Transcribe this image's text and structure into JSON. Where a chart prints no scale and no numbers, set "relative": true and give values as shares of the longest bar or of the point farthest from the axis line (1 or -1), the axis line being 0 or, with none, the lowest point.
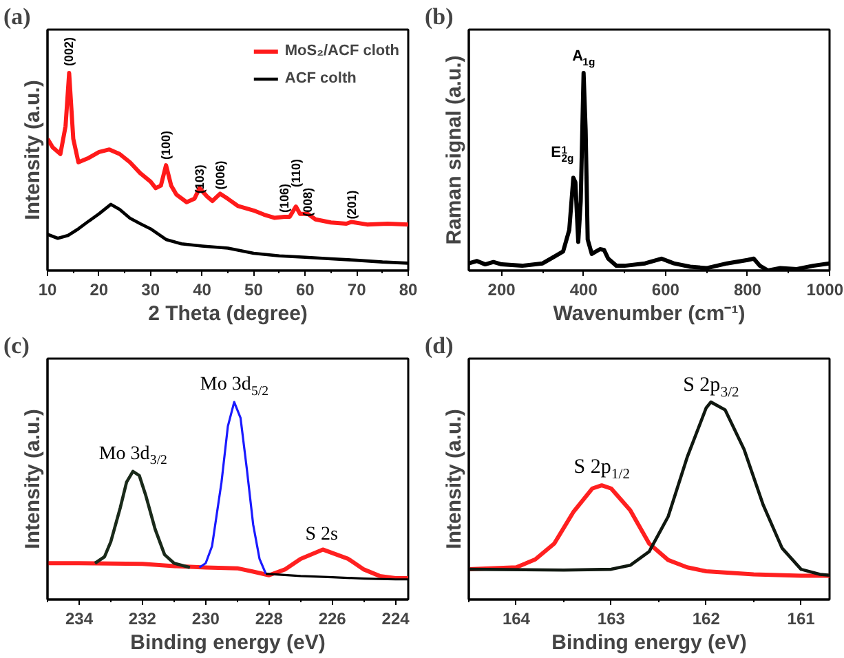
{
  "chart_data": [
    {
      "type": "line",
      "title": "(a)",
      "xlabel": "2 Theta (degree)",
      "ylabel": "Intensity (a.u.)",
      "relative": true,
      "tick_labels": "x",
      "legend": "top right",
      "xlim": [
        10,
        80
      ],
      "xticks": [
        10,
        20,
        30,
        40,
        50,
        60,
        70,
        80
      ],
      "series": [
        {
          "name": "MoS₂/ACF cloth",
          "color": "#ff1a1a",
          "x": [
            10,
            11,
            12.5,
            13.5,
            14.2,
            15,
            16,
            18,
            20,
            22,
            24,
            26,
            28,
            30,
            31,
            32,
            33,
            34,
            35,
            37,
            38.5,
            39.5,
            41,
            42,
            43.5,
            45,
            47,
            50,
            52,
            54,
            56,
            57,
            58.2,
            59,
            60.5,
            62,
            65,
            68,
            69,
            72,
            76,
            80
          ],
          "values": [
            0.667,
            0.624,
            0.59,
            0.73,
            1.0,
            0.667,
            0.548,
            0.57,
            0.6,
            0.613,
            0.59,
            0.548,
            0.493,
            0.45,
            0.417,
            0.43,
            0.533,
            0.43,
            0.385,
            0.346,
            0.363,
            0.417,
            0.374,
            0.352,
            0.389,
            0.363,
            0.326,
            0.304,
            0.283,
            0.267,
            0.272,
            0.272,
            0.324,
            0.287,
            0.287,
            0.259,
            0.243,
            0.237,
            0.246,
            0.233,
            0.237,
            0.233
          ]
        },
        {
          "name": "ACF colth",
          "color": "#000000",
          "x": [
            10,
            12,
            14,
            16,
            18,
            20,
            22.3,
            24,
            26,
            28,
            30,
            33,
            36,
            40,
            45,
            50,
            55,
            60,
            65,
            70,
            75,
            80
          ],
          "values": [
            0.183,
            0.163,
            0.178,
            0.211,
            0.25,
            0.287,
            0.335,
            0.309,
            0.265,
            0.237,
            0.211,
            0.157,
            0.135,
            0.124,
            0.113,
            0.087,
            0.074,
            0.067,
            0.059,
            0.052,
            0.043,
            0.037
          ]
        }
      ],
      "annotations": [
        {
          "text": "(002)",
          "x": 14.2,
          "y": 1.0
        },
        {
          "text": "(100)",
          "x": 33,
          "y": 0.533
        },
        {
          "text": "(103)",
          "x": 39.5,
          "y": 0.417
        },
        {
          "text": "(006)",
          "x": 43.5,
          "y": 0.389
        },
        {
          "text": "(106)",
          "x": 56,
          "y": 0.272
        },
        {
          "text": "(110)",
          "x": 58.2,
          "y": 0.324
        },
        {
          "text": "(008)",
          "x": 60.5,
          "y": 0.287
        },
        {
          "text": "(201)",
          "x": 69,
          "y": 0.246
        }
      ]
    },
    {
      "type": "line",
      "title": "(b)",
      "xlabel": "Wavenumber (cm⁻¹)",
      "ylabel": "Raman signal (a.u.)",
      "relative": true,
      "tick_labels": "x",
      "xlim": [
        120,
        1000
      ],
      "xticks": [
        200,
        400,
        600,
        800,
        1000
      ],
      "series": [
        {
          "color": "#000000",
          "x": [
            120,
            140,
            160,
            180,
            200,
            250,
            300,
            330,
            350,
            365,
            375,
            380,
            387,
            393,
            400,
            405,
            410,
            420,
            440,
            450,
            460,
            480,
            500,
            550,
            590,
            620,
            660,
            700,
            750,
            800,
            815,
            830,
            850,
            880,
            920,
            960,
            1000
          ],
          "values": [
            0.036,
            0.048,
            0.031,
            0.043,
            0.031,
            0.024,
            0.036,
            0.072,
            0.096,
            0.205,
            0.47,
            0.446,
            0.145,
            0.35,
            1.0,
            0.711,
            0.157,
            0.084,
            0.108,
            0.104,
            0.06,
            0.024,
            0.024,
            0.036,
            0.06,
            0.036,
            0.019,
            0.012,
            0.036,
            0.053,
            0.06,
            0.024,
            0.0,
            0.012,
            0.007,
            0.024,
            0.036
          ]
        }
      ],
      "annotations": [
        {
          "text": "E$^{1}$$_{2g}$",
          "x": 375,
          "y": 0.47
        },
        {
          "text": "A$_{1g}$",
          "x": 400,
          "y": 1.0
        }
      ]
    },
    {
      "type": "line",
      "title": "(c)",
      "xlabel": "Binding energy (eV)",
      "ylabel": "Intensity (a.u.)",
      "relative": true,
      "tick_labels": "x",
      "xlim": [
        235,
        223.6
      ],
      "xticks": [
        234,
        232,
        230,
        228,
        226,
        224
      ],
      "series": [
        {
          "color": "#ff2020",
          "x": [
            235,
            234,
            232,
            231,
            230,
            229,
            228.5,
            228,
            227.5,
            227,
            226.3,
            225.5,
            225,
            224.5,
            224,
            223.6
          ],
          "values": [
            0.184,
            0.184,
            0.18,
            0.169,
            0.162,
            0.158,
            0.141,
            0.123,
            0.152,
            0.206,
            0.253,
            0.206,
            0.152,
            0.119,
            0.108,
            0.108
          ]
        },
        {
          "color": "#1a2a1a",
          "x": [
            233.5,
            233.2,
            233,
            232.7,
            232.5,
            232.3,
            232.1,
            231.9,
            231.6,
            231.3,
            231,
            230.5
          ],
          "values": [
            0.184,
            0.216,
            0.292,
            0.465,
            0.595,
            0.649,
            0.628,
            0.53,
            0.357,
            0.227,
            0.184,
            0.162
          ]
        },
        {
          "color": "#1a1aff",
          "x": [
            230.2,
            230,
            229.8,
            229.5,
            229.3,
            229.1,
            228.9,
            228.7,
            228.5,
            228.3,
            228.1
          ],
          "values": [
            0.162,
            0.184,
            0.27,
            0.595,
            0.877,
            1.0,
            0.92,
            0.66,
            0.379,
            0.206,
            0.13
          ]
        },
        {
          "color": "#000000",
          "x": [
            228.1,
            227,
            226,
            225,
            224,
            223.6
          ],
          "values": [
            0.13,
            0.119,
            0.113,
            0.106,
            0.102,
            0.102
          ]
        }
      ],
      "annotations": [
        {
          "text": "Mo 3d$_{3/2}$",
          "x": 232.3,
          "y": 0.649
        },
        {
          "text": "Mo 3d$_{5/2}$",
          "x": 229.1,
          "y": 1.0
        },
        {
          "text": "S 2s",
          "x": 226.3,
          "y": 0.253
        }
      ]
    },
    {
      "type": "line",
      "title": "(d)",
      "xlabel": "Binding energy (eV)",
      "ylabel": "Intensity (a.u.)",
      "relative": true,
      "tick_labels": "x",
      "xlim": [
        164.5,
        160.7
      ],
      "xticks": [
        164,
        163,
        162,
        161
      ],
      "series": [
        {
          "color": "#ff2020",
          "x": [
            164.5,
            164,
            163.8,
            163.6,
            163.4,
            163.2,
            163.1,
            163.0,
            162.8,
            162.6,
            162.4,
            162.2,
            162,
            161.5,
            161,
            160.7
          ],
          "values": [
            0.153,
            0.163,
            0.203,
            0.283,
            0.442,
            0.562,
            0.578,
            0.562,
            0.452,
            0.283,
            0.2,
            0.163,
            0.143,
            0.127,
            0.12,
            0.12
          ]
        },
        {
          "color": "#101810",
          "x": [
            164.5,
            163.5,
            163,
            162.8,
            162.6,
            162.4,
            162.2,
            162.0,
            161.95,
            161.8,
            161.6,
            161.4,
            161.2,
            161,
            160.8,
            160.7
          ],
          "values": [
            0.153,
            0.149,
            0.153,
            0.173,
            0.243,
            0.42,
            0.72,
            0.97,
            1.0,
            0.96,
            0.76,
            0.48,
            0.26,
            0.153,
            0.127,
            0.123
          ]
        }
      ],
      "annotations": [
        {
          "text": "S 2p$_{1/2}$",
          "x": 163.1,
          "y": 0.578
        },
        {
          "text": "S 2p$_{3/2}$",
          "x": 161.95,
          "y": 1.0
        }
      ]
    }
  ]
}
